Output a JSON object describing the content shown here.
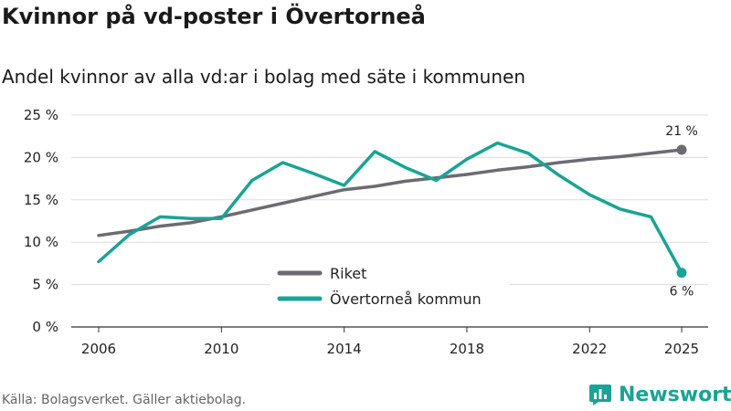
{
  "header": {
    "title": "Kvinnor på vd-poster i Övertorneå",
    "subtitle": "Andel kvinnor av alla vd:ar i bolag med säte i kommunen"
  },
  "footer": {
    "source": "Källa: Bolagsverket. Gäller aktiebolag.",
    "brand": "Newsworthy"
  },
  "chart_data": {
    "type": "line",
    "title": "Kvinnor på vd-poster i Övertorneå",
    "subtitle": "Andel kvinnor av alla vd:ar i bolag med säte i kommunen",
    "xlabel": "",
    "ylabel": "",
    "xlim": [
      2006,
      2025
    ],
    "ylim": [
      0,
      25
    ],
    "x_ticks": [
      "2006",
      "2010",
      "2014",
      "2018",
      "2022",
      "2025"
    ],
    "x_tick_values": [
      2006,
      2010,
      2014,
      2018,
      2022,
      2025
    ],
    "y_ticks": [
      "0 %",
      "5 %",
      "10 %",
      "15 %",
      "20 %",
      "25 %"
    ],
    "y_tick_values": [
      0,
      5,
      10,
      15,
      20,
      25
    ],
    "grid": "horizontal",
    "legend_position": "bottom-center",
    "x": [
      2006,
      2007,
      2008,
      2009,
      2010,
      2011,
      2012,
      2013,
      2014,
      2015,
      2016,
      2017,
      2018,
      2019,
      2020,
      2021,
      2022,
      2023,
      2024,
      2025
    ],
    "series": [
      {
        "name": "Riket",
        "color": "#6b6b72",
        "values": [
          10.8,
          11.3,
          11.9,
          12.3,
          13.0,
          13.8,
          14.6,
          15.4,
          16.2,
          16.6,
          17.2,
          17.6,
          18.0,
          18.5,
          18.9,
          19.4,
          19.8,
          20.1,
          20.5,
          20.9
        ],
        "end_label": "21 %"
      },
      {
        "name": "Övertorneå kommun",
        "color": "#1aa396",
        "values": [
          7.7,
          10.9,
          13.0,
          12.8,
          12.8,
          17.3,
          19.4,
          18.1,
          16.7,
          20.7,
          18.8,
          17.3,
          19.8,
          21.7,
          20.5,
          17.9,
          15.6,
          13.9,
          13.0,
          6.4
        ],
        "end_label": "6 %"
      }
    ]
  }
}
